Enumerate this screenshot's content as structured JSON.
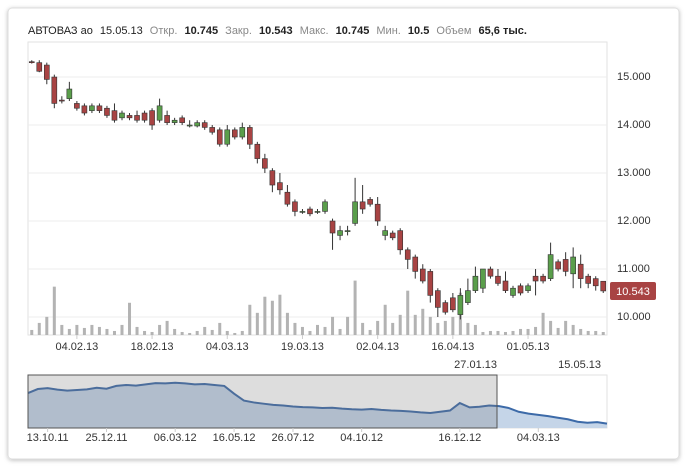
{
  "chart_data": {
    "type": "candlestick",
    "header": {
      "name": "АВТОВАЗ ао",
      "date": "15.05.13",
      "labels": [
        "Откр.",
        "Закр.",
        "Макс.",
        "Мин.",
        "Объем"
      ],
      "volume_label": "65,6 тыс."
    },
    "categories": [
      null,
      null,
      null,
      null,
      null,
      null,
      "04.02.13",
      null,
      null,
      null,
      null,
      null,
      null,
      null,
      null,
      null,
      "18.02.13",
      null,
      null,
      null,
      null,
      null,
      null,
      null,
      null,
      null,
      "04.03.13",
      null,
      null,
      null,
      null,
      null,
      null,
      null,
      null,
      null,
      "19.03.13",
      null,
      null,
      null,
      null,
      null,
      null,
      null,
      null,
      null,
      "02.04.13",
      null,
      null,
      null,
      null,
      null,
      null,
      null,
      null,
      null,
      "16.04.13",
      null,
      null,
      null,
      null,
      null,
      null,
      null,
      null,
      null,
      "01.05.13",
      null,
      null,
      null,
      null,
      null,
      null,
      null,
      null,
      null,
      null
    ],
    "open": [
      15.32,
      15.3,
      15.25,
      15.0,
      14.52,
      14.55,
      14.45,
      14.4,
      14.3,
      14.4,
      14.35,
      14.3,
      14.15,
      14.2,
      14.2,
      14.25,
      14.3,
      14.1,
      14.2,
      14.05,
      14.15,
      14.0,
      13.98,
      14.05,
      13.95,
      13.9,
      13.6,
      13.9,
      13.75,
      13.95,
      13.6,
      13.3,
      13.05,
      12.8,
      12.6,
      12.4,
      12.2,
      12.25,
      12.2,
      12.2,
      12.0,
      11.7,
      11.8,
      11.95,
      12.4,
      12.45,
      12.35,
      11.7,
      11.75,
      11.8,
      11.4,
      11.25,
      11.0,
      10.95,
      10.55,
      10.3,
      10.4,
      10.05,
      10.3,
      10.55,
      10.6,
      11.0,
      10.85,
      10.75,
      10.45,
      10.65,
      10.55,
      10.85,
      10.85,
      10.8,
      11.15,
      11.2,
      10.9,
      11.1,
      10.85,
      10.8,
      10.745
    ],
    "high": [
      15.35,
      15.35,
      15.3,
      15.05,
      14.6,
      14.9,
      14.5,
      14.45,
      14.45,
      14.45,
      14.4,
      14.45,
      14.3,
      14.25,
      14.3,
      14.3,
      14.35,
      14.55,
      14.3,
      14.15,
      14.2,
      14.1,
      14.1,
      14.1,
      14.0,
      13.95,
      14.0,
      13.95,
      14.05,
      14.0,
      13.65,
      13.4,
      13.1,
      13.0,
      12.75,
      12.45,
      12.25,
      12.3,
      12.25,
      12.45,
      12.05,
      11.9,
      11.9,
      12.9,
      12.75,
      12.5,
      12.5,
      11.9,
      11.8,
      11.85,
      11.45,
      11.3,
      11.1,
      11.0,
      10.6,
      10.35,
      10.5,
      10.6,
      10.8,
      11.05,
      11.0,
      11.05,
      11.0,
      10.95,
      10.65,
      10.7,
      10.7,
      11.0,
      10.9,
      11.55,
      11.2,
      11.35,
      11.45,
      11.3,
      10.9,
      10.85,
      10.745
    ],
    "low": [
      15.28,
      15.1,
      14.85,
      14.35,
      14.45,
      14.5,
      14.3,
      14.2,
      14.25,
      14.25,
      14.15,
      14.05,
      14.1,
      14.1,
      14.05,
      14.05,
      13.9,
      14.05,
      14.0,
      14.0,
      14.0,
      13.95,
      13.95,
      13.9,
      13.8,
      13.55,
      13.55,
      13.7,
      13.7,
      13.5,
      13.2,
      13.0,
      12.6,
      12.55,
      12.3,
      12.1,
      12.15,
      12.1,
      12.15,
      12.15,
      11.4,
      11.6,
      11.7,
      11.9,
      12.15,
      12.3,
      11.9,
      11.6,
      11.6,
      11.3,
      11.0,
      10.8,
      10.7,
      10.3,
      10.0,
      10.05,
      10.1,
      9.95,
      10.25,
      10.5,
      10.5,
      10.8,
      10.65,
      10.5,
      10.4,
      10.45,
      10.5,
      10.45,
      10.7,
      10.75,
      10.95,
      10.85,
      10.6,
      10.6,
      10.6,
      10.55,
      10.5
    ],
    "close": [
      15.3,
      15.12,
      14.95,
      14.45,
      14.5,
      14.75,
      14.35,
      14.25,
      14.4,
      14.3,
      14.2,
      14.1,
      14.25,
      14.15,
      14.1,
      14.1,
      14.0,
      14.4,
      14.05,
      14.1,
      14.05,
      14.0,
      14.05,
      13.95,
      13.85,
      13.6,
      13.9,
      13.75,
      13.95,
      13.6,
      13.3,
      13.1,
      12.75,
      12.65,
      12.35,
      12.2,
      12.2,
      12.15,
      12.2,
      12.4,
      11.75,
      11.8,
      11.8,
      12.4,
      12.25,
      12.35,
      12.0,
      11.8,
      11.65,
      11.4,
      11.2,
      10.95,
      10.75,
      10.45,
      10.2,
      10.1,
      10.15,
      10.45,
      10.55,
      10.85,
      11.0,
      10.85,
      10.7,
      10.55,
      10.6,
      10.5,
      10.65,
      10.75,
      10.75,
      11.3,
      11.0,
      10.95,
      11.25,
      10.8,
      10.7,
      10.65,
      10.543
    ],
    "volume": [
      110,
      264,
      396,
      1056,
      220,
      132,
      220,
      154,
      220,
      176,
      132,
      88,
      220,
      704,
      176,
      88,
      66,
      220,
      308,
      132,
      66,
      44,
      88,
      176,
      110,
      264,
      88,
      44,
      88,
      660,
      484,
      836,
      748,
      880,
      484,
      264,
      176,
      88,
      220,
      176,
      396,
      132,
      396,
      1188,
      264,
      110,
      308,
      660,
      264,
      440,
      968,
      440,
      572,
      396,
      264,
      308,
      396,
      924,
      264,
      220,
      66,
      88,
      88,
      66,
      88,
      132,
      132,
      176,
      484,
      308,
      154,
      308,
      220,
      132,
      88,
      88,
      65.6
    ],
    "up_color": "#5a9e4b",
    "down_color": "#a84343",
    "volume_color": "#b3b3b3",
    "ylim": [
      9.625,
      15.73
    ],
    "yticks": [
      {
        "value": 10,
        "label": "10.000"
      },
      {
        "value": 11,
        "label": "11.000"
      },
      {
        "value": 12,
        "label": "12.000"
      },
      {
        "value": 13,
        "label": "13.000"
      },
      {
        "value": 14,
        "label": "14.000"
      },
      {
        "value": 15,
        "label": "15.000"
      }
    ],
    "volume_ylim": [
      0,
      6400
    ],
    "grid": true,
    "navigator": {
      "type": "area",
      "categories": [
        null,
        null,
        "13.10.11",
        null,
        null,
        null,
        null,
        null,
        "25.12.11",
        null,
        null,
        null,
        null,
        null,
        null,
        "06.03.12",
        null,
        null,
        null,
        null,
        null,
        "16.05.12",
        null,
        null,
        null,
        null,
        null,
        "26.07.12",
        null,
        null,
        null,
        null,
        null,
        null,
        "04.10.12",
        null,
        null,
        null,
        null,
        null,
        null,
        null,
        null,
        null,
        "16.12.12",
        null,
        null,
        null,
        null,
        null,
        null,
        null,
        "04.03.13",
        null,
        null,
        null,
        null,
        null,
        null,
        null
      ],
      "values": [
        19.2,
        20.5,
        20.8,
        20.3,
        20.0,
        20.2,
        20.4,
        20.9,
        20.6,
        21.5,
        21.8,
        21.6,
        22.0,
        22.4,
        22.3,
        22.5,
        22.3,
        22.0,
        22.1,
        21.8,
        21.5,
        19.0,
        16.8,
        16.2,
        15.8,
        15.4,
        15.2,
        14.9,
        14.7,
        14.6,
        14.4,
        14.5,
        14.2,
        14.0,
        13.9,
        14.1,
        13.8,
        13.6,
        13.5,
        13.3,
        13.0,
        12.8,
        13.2,
        13.6,
        16.0,
        14.6,
        14.8,
        15.2,
        15.0,
        14.4,
        13.2,
        12.6,
        12.2,
        11.8,
        11.3,
        10.8,
        10.0,
        9.7,
        9.9,
        9.4
      ],
      "ylim": [
        8,
        25
      ],
      "color": "#3c6aa8",
      "fill": "#c5d5e8",
      "range_labels": [
        "27.01.13",
        "15.05.13"
      ]
    }
  }
}
